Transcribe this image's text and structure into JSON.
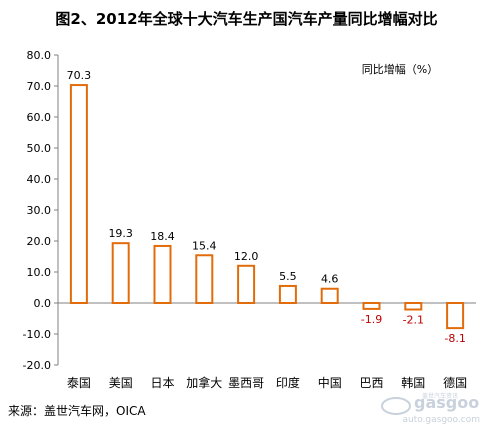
{
  "chart_data": {
    "type": "bar",
    "title": "图2、2012年全球十大汽车生产国汽车产量同比增幅对比",
    "unit_label": "同比增幅（%）",
    "categories": [
      "泰国",
      "美国",
      "日本",
      "加拿大",
      "墨西哥",
      "印度",
      "中国",
      "巴西",
      "韩国",
      "德国"
    ],
    "values": [
      70.3,
      19.3,
      18.4,
      15.4,
      12.0,
      5.5,
      4.6,
      -1.9,
      -2.1,
      -8.1
    ],
    "value_labels": [
      "70.3",
      "19.3",
      "18.4",
      "15.4",
      "12.0",
      "5.5",
      "4.6",
      "-1.9",
      "-2.1",
      "-8.1"
    ],
    "ylim": [
      -20,
      80
    ],
    "yticks": [
      "80.0",
      "70.0",
      "60.0",
      "50.0",
      "40.0",
      "30.0",
      "20.0",
      "10.0",
      "0.0",
      "-10.0",
      "-20.0"
    ],
    "grid": false,
    "colors": {
      "bar_edge": "#E36C0A",
      "bar_fill": "#ffffff",
      "negative_label": "#C00000",
      "positive_label": "#000000"
    }
  },
  "source": "来源：盖世汽车网，OICA",
  "watermark": {
    "brand": "gasgoo",
    "url": "auto.gasgoo.com",
    "tagline": "盖世汽车资讯"
  }
}
